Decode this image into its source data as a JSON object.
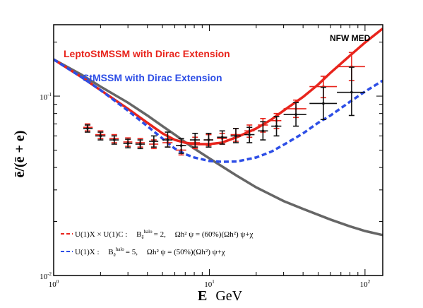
{
  "chart_data": {
    "type": "line",
    "xscale": "log",
    "yscale": "log",
    "xlim": [
      1,
      130
    ],
    "ylim": [
      0.01,
      0.25
    ],
    "xlabel_main": "E",
    "xlabel_unit": "GeV",
    "ylabel": "ē/(ē + e)",
    "x_ticks": [
      {
        "value": 1,
        "base": "10",
        "exp": "0"
      },
      {
        "value": 10,
        "base": "10",
        "exp": "1"
      },
      {
        "value": 100,
        "base": "10",
        "exp": "2"
      }
    ],
    "y_ticks": [
      {
        "value": 0.01,
        "base": "10",
        "exp": "-2"
      },
      {
        "value": 0.1,
        "base": "10",
        "exp": "-1"
      }
    ],
    "annotations": {
      "corner": "NFW MED",
      "red_label": "LeptoStMSSM with Dirac Extension",
      "blue_label": "StMSSM with Dirac Extension"
    },
    "legend": [
      {
        "color": "#e8241c",
        "model": "U(1)X × U(1)C :",
        "bhalo": "B",
        "bhalo_sub": "ē",
        "bhalo_sup": "halo",
        "bhalo_val": "= 2,",
        "omega": "Ωh² ψ = (60%)(Ωh²) ψ+χ"
      },
      {
        "color": "#2d4ee6",
        "model": "U(1)X :",
        "bhalo": "B",
        "bhalo_sub": "ē",
        "bhalo_sup": "halo",
        "bhalo_val": "= 5,",
        "omega": "Ωh² ψ = (50%)(Ωh²) ψ+χ"
      }
    ],
    "series": [
      {
        "color": "#666666",
        "points": [
          [
            1,
            0.16
          ],
          [
            1.5,
            0.132
          ],
          [
            2,
            0.113
          ],
          [
            3,
            0.092
          ],
          [
            4,
            0.078
          ],
          [
            5,
            0.068
          ],
          [
            6,
            0.061
          ],
          [
            8,
            0.051
          ],
          [
            10,
            0.045
          ],
          [
            15,
            0.036
          ],
          [
            20,
            0.031
          ],
          [
            30,
            0.026
          ],
          [
            40,
            0.0235
          ],
          [
            60,
            0.0205
          ],
          [
            80,
            0.0188
          ],
          [
            100,
            0.0177
          ],
          [
            130,
            0.0168
          ]
        ]
      },
      {
        "color": "#e8241c",
        "points": [
          [
            1,
            0.16
          ],
          [
            1.5,
            0.128
          ],
          [
            2,
            0.108
          ],
          [
            3,
            0.085
          ],
          [
            4,
            0.071
          ],
          [
            5,
            0.062
          ],
          [
            6,
            0.057
          ],
          [
            7,
            0.055
          ],
          [
            8,
            0.054
          ],
          [
            10,
            0.054
          ],
          [
            12,
            0.055
          ],
          [
            15,
            0.059
          ],
          [
            20,
            0.066
          ],
          [
            25,
            0.074
          ],
          [
            30,
            0.083
          ],
          [
            40,
            0.099
          ],
          [
            50,
            0.116
          ],
          [
            60,
            0.135
          ],
          [
            80,
            0.168
          ],
          [
            100,
            0.199
          ],
          [
            130,
            0.238
          ]
        ]
      },
      {
        "color": "#2d4ee6",
        "dashed": true,
        "points": [
          [
            1,
            0.16
          ],
          [
            1.5,
            0.128
          ],
          [
            2,
            0.108
          ],
          [
            3,
            0.083
          ],
          [
            4,
            0.068
          ],
          [
            5,
            0.058
          ],
          [
            6,
            0.051
          ],
          [
            7,
            0.0475
          ],
          [
            8,
            0.0455
          ],
          [
            10,
            0.0435
          ],
          [
            12,
            0.043
          ],
          [
            15,
            0.0432
          ],
          [
            20,
            0.0455
          ],
          [
            25,
            0.049
          ],
          [
            30,
            0.0535
          ],
          [
            40,
            0.062
          ],
          [
            50,
            0.071
          ],
          [
            60,
            0.078
          ],
          [
            80,
            0.093
          ],
          [
            100,
            0.106
          ],
          [
            130,
            0.122
          ]
        ]
      }
    ],
    "data_black": [
      {
        "x": 1.65,
        "y": 0.066,
        "xl": 1.55,
        "xh": 1.78,
        "yl": 0.063,
        "yh": 0.069
      },
      {
        "x": 2.0,
        "y": 0.06,
        "xl": 1.85,
        "xh": 2.15,
        "yl": 0.057,
        "yh": 0.063
      },
      {
        "x": 2.45,
        "y": 0.057,
        "xl": 2.28,
        "xh": 2.62,
        "yl": 0.054,
        "yh": 0.06
      },
      {
        "x": 3.0,
        "y": 0.0545,
        "xl": 2.8,
        "xh": 3.2,
        "yl": 0.0515,
        "yh": 0.0575
      },
      {
        "x": 3.6,
        "y": 0.054,
        "xl": 3.35,
        "xh": 3.85,
        "yl": 0.051,
        "yh": 0.057
      },
      {
        "x": 4.4,
        "y": 0.056,
        "xl": 4.1,
        "xh": 4.7,
        "yl": 0.052,
        "yh": 0.06
      },
      {
        "x": 5.4,
        "y": 0.057,
        "xl": 5.0,
        "xh": 5.8,
        "yl": 0.052,
        "yh": 0.063
      },
      {
        "x": 6.6,
        "y": 0.053,
        "xl": 6.1,
        "xh": 7.1,
        "yl": 0.048,
        "yh": 0.058
      },
      {
        "x": 8.1,
        "y": 0.057,
        "xl": 7.5,
        "xh": 8.7,
        "yl": 0.052,
        "yh": 0.062
      },
      {
        "x": 9.9,
        "y": 0.057,
        "xl": 9.2,
        "xh": 10.6,
        "yl": 0.052,
        "yh": 0.062
      },
      {
        "x": 12.1,
        "y": 0.059,
        "xl": 11.2,
        "xh": 13.0,
        "yl": 0.054,
        "yh": 0.064
      },
      {
        "x": 14.8,
        "y": 0.06,
        "xl": 13.7,
        "xh": 15.9,
        "yl": 0.055,
        "yh": 0.066
      },
      {
        "x": 18.1,
        "y": 0.061,
        "xl": 16.8,
        "xh": 19.5,
        "yl": 0.055,
        "yh": 0.067
      },
      {
        "x": 22.1,
        "y": 0.064,
        "xl": 20.5,
        "xh": 23.8,
        "yl": 0.057,
        "yh": 0.072
      },
      {
        "x": 27.0,
        "y": 0.068,
        "xl": 25.0,
        "xh": 29.0,
        "yl": 0.06,
        "yh": 0.077
      },
      {
        "x": 36.0,
        "y": 0.079,
        "xl": 30.0,
        "xh": 42.0,
        "yl": 0.068,
        "yh": 0.092
      },
      {
        "x": 54.0,
        "y": 0.091,
        "xl": 44.0,
        "xh": 66.0,
        "yl": 0.074,
        "yh": 0.112
      },
      {
        "x": 82.0,
        "y": 0.105,
        "xl": 66.0,
        "xh": 100.0,
        "yl": 0.078,
        "yh": 0.145
      }
    ],
    "data_red": [
      {
        "x": 1.65,
        "y": 0.067,
        "xl": 1.55,
        "xh": 1.78,
        "yl": 0.064,
        "yh": 0.07
      },
      {
        "x": 2.0,
        "y": 0.061,
        "xl": 1.85,
        "xh": 2.15,
        "yl": 0.058,
        "yh": 0.064
      },
      {
        "x": 2.45,
        "y": 0.058,
        "xl": 2.28,
        "xh": 2.62,
        "yl": 0.055,
        "yh": 0.061
      },
      {
        "x": 3.0,
        "y": 0.0555,
        "xl": 2.8,
        "xh": 3.2,
        "yl": 0.0525,
        "yh": 0.0585
      },
      {
        "x": 3.6,
        "y": 0.055,
        "xl": 3.35,
        "xh": 3.85,
        "yl": 0.052,
        "yh": 0.058
      },
      {
        "x": 4.4,
        "y": 0.054,
        "xl": 4.1,
        "xh": 4.7,
        "yl": 0.051,
        "yh": 0.057
      },
      {
        "x": 5.4,
        "y": 0.055,
        "xl": 5.0,
        "xh": 5.8,
        "yl": 0.052,
        "yh": 0.058
      },
      {
        "x": 6.6,
        "y": 0.05,
        "xl": 6.1,
        "xh": 7.1,
        "yl": 0.047,
        "yh": 0.053
      },
      {
        "x": 8.1,
        "y": 0.055,
        "xl": 7.5,
        "xh": 8.7,
        "yl": 0.051,
        "yh": 0.059
      },
      {
        "x": 9.9,
        "y": 0.057,
        "xl": 9.2,
        "xh": 10.6,
        "yl": 0.053,
        "yh": 0.061
      },
      {
        "x": 12.1,
        "y": 0.058,
        "xl": 11.2,
        "xh": 13.0,
        "yl": 0.054,
        "yh": 0.062
      },
      {
        "x": 14.8,
        "y": 0.061,
        "xl": 13.7,
        "xh": 15.9,
        "yl": 0.056,
        "yh": 0.066
      },
      {
        "x": 18.1,
        "y": 0.064,
        "xl": 16.8,
        "xh": 19.5,
        "yl": 0.059,
        "yh": 0.069
      },
      {
        "x": 22.1,
        "y": 0.069,
        "xl": 20.5,
        "xh": 23.8,
        "yl": 0.063,
        "yh": 0.075
      },
      {
        "x": 27.0,
        "y": 0.073,
        "xl": 25.0,
        "xh": 29.0,
        "yl": 0.066,
        "yh": 0.08
      },
      {
        "x": 36.0,
        "y": 0.085,
        "xl": 30.0,
        "xh": 42.0,
        "yl": 0.076,
        "yh": 0.095
      },
      {
        "x": 54.0,
        "y": 0.113,
        "xl": 44.0,
        "xh": 66.0,
        "yl": 0.098,
        "yh": 0.129
      },
      {
        "x": 82.0,
        "y": 0.146,
        "xl": 66.0,
        "xh": 100.0,
        "yl": 0.122,
        "yh": 0.175
      }
    ]
  }
}
